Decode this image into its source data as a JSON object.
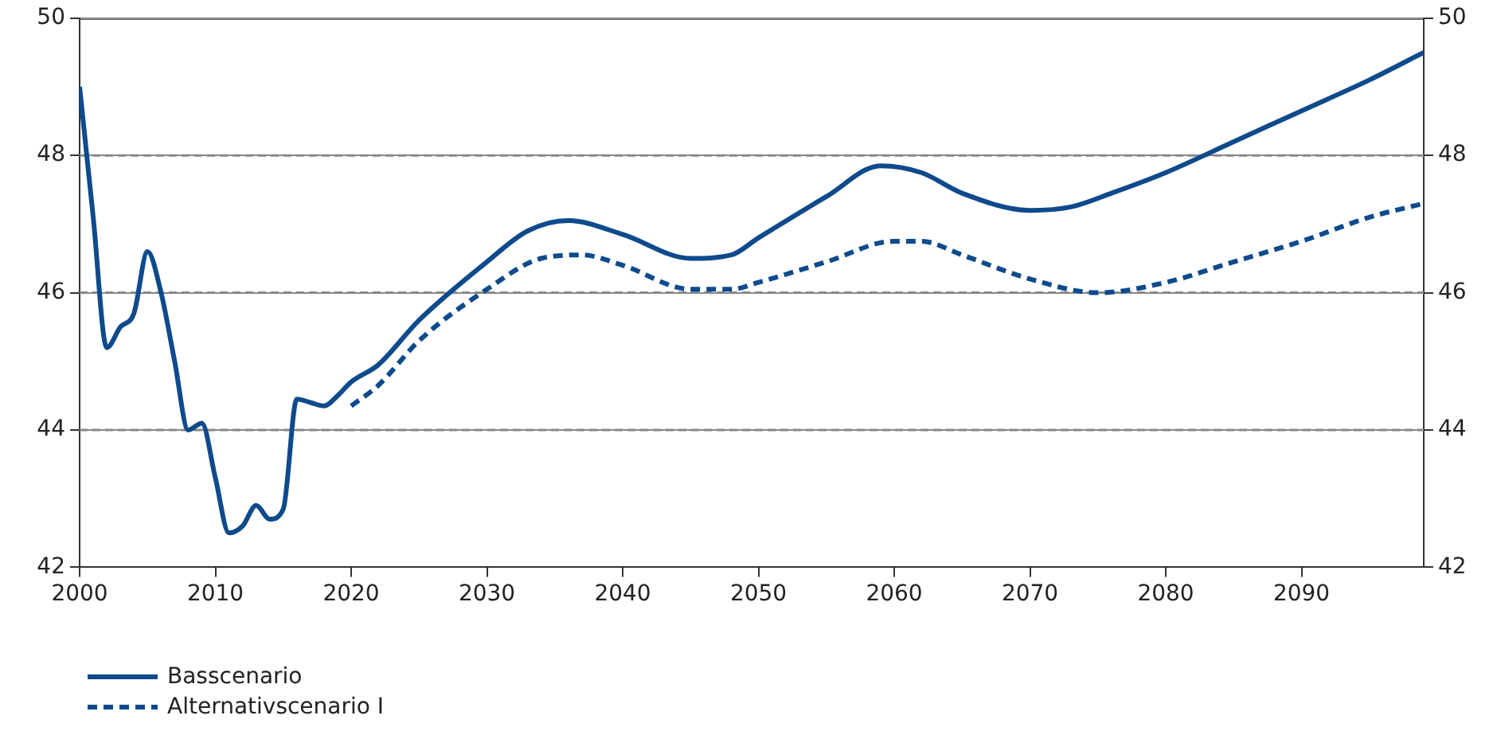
{
  "chart_data": {
    "type": "line",
    "xlim": [
      2000,
      2099
    ],
    "xticks": [
      2000,
      2010,
      2020,
      2030,
      2040,
      2050,
      2060,
      2070,
      2080,
      2090
    ],
    "ylim": [
      42,
      50
    ],
    "yticks": [
      42,
      44,
      46,
      48,
      50
    ],
    "y2lim": [
      42,
      50
    ],
    "y2ticks": [
      42,
      44,
      46,
      48,
      50
    ],
    "grid": "y",
    "legend": "bottom left",
    "marker": "none",
    "series": [
      {
        "name": "Basscenario",
        "color": "#0e4a8c",
        "line_style": "solid",
        "x": [
          2000,
          2001,
          2002,
          2003,
          2004,
          2005,
          2006,
          2007,
          2008,
          2009,
          2010,
          2011,
          2012,
          2013,
          2014,
          2015,
          2016,
          2017,
          2018,
          2019,
          2020,
          2022,
          2025,
          2030,
          2033,
          2036,
          2040,
          2045,
          2048,
          2050,
          2055,
          2059,
          2062,
          2065,
          2070,
          2073,
          2076,
          2080,
          2085,
          2090,
          2095,
          2099
        ],
        "values": [
          49.0,
          47.1,
          45.2,
          45.5,
          45.7,
          46.6,
          46.0,
          45.0,
          44.0,
          44.1,
          43.3,
          42.5,
          42.6,
          42.9,
          42.7,
          42.85,
          44.45,
          44.4,
          44.35,
          44.5,
          44.7,
          44.95,
          45.6,
          46.45,
          46.9,
          47.05,
          46.85,
          46.5,
          46.55,
          46.8,
          47.4,
          47.85,
          47.75,
          47.45,
          47.2,
          47.25,
          47.45,
          47.75,
          48.2,
          48.65,
          49.1,
          49.5
        ]
      },
      {
        "name": "Alternativscenario I",
        "color": "#0e4a8c",
        "line_style": "dashed",
        "x": [
          2020,
          2022,
          2025,
          2030,
          2034,
          2037,
          2040,
          2045,
          2048,
          2050,
          2055,
          2060,
          2062,
          2065,
          2070,
          2075,
          2080,
          2085,
          2090,
          2095,
          2099
        ],
        "values": [
          44.35,
          44.65,
          45.3,
          46.05,
          46.5,
          46.55,
          46.4,
          46.05,
          46.05,
          46.15,
          46.45,
          46.75,
          46.75,
          46.55,
          46.2,
          46.0,
          46.15,
          46.45,
          46.75,
          47.1,
          47.3
        ]
      }
    ]
  }
}
